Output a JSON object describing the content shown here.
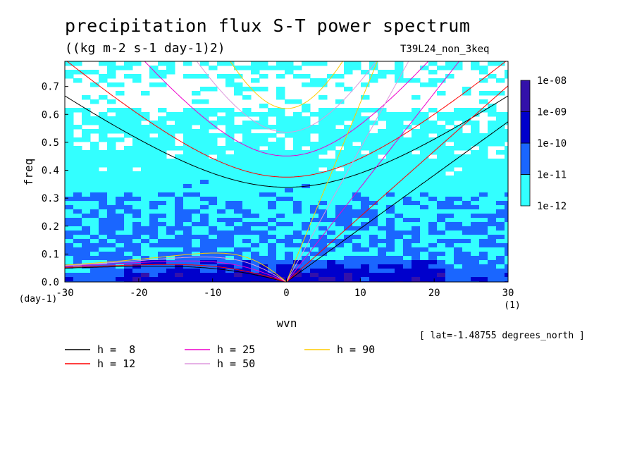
{
  "header": {
    "title": "precipitation flux S-T power spectrum",
    "units": "((kg m-2 s-1 day-1)2)",
    "run": "T39L24_non_3keq",
    "lat_note": "[ lat=-1.48755 degrees_north ]"
  },
  "chart_data": {
    "type": "heatmap",
    "title": "precipitation flux S-T power spectrum",
    "subtitle": "((kg m-2 s-1 day-1)2)",
    "xlabel": "wvn",
    "xunit": "(1)",
    "ylabel": "freq",
    "yunit": "(day-1)",
    "xlim": [
      -30,
      30
    ],
    "ylim": [
      0,
      0.79
    ],
    "xticks": [
      -30,
      -20,
      -10,
      0,
      10,
      20,
      30
    ],
    "xtick_labels": [
      "-30",
      "-20",
      "-10",
      "0",
      "10",
      "20",
      "30"
    ],
    "yticks": [
      0.0,
      0.1,
      0.2,
      0.3,
      0.4,
      0.5,
      0.6,
      0.7
    ],
    "ytick_labels": [
      "0.0",
      "0.1",
      "0.2",
      "0.3",
      "0.4",
      "0.5",
      "0.6",
      "0.7"
    ],
    "colorbar": {
      "levels": [
        "1e-12",
        "1e-11",
        "1e-10",
        "1e-09",
        "1e-08"
      ],
      "colors": [
        "#33ffff",
        "#1a66ff",
        "#0000cc",
        "#3311aa"
      ]
    },
    "power_regions": [
      {
        "level": "1e-12 to 1e-11",
        "approx_freq_range": [
          0.3,
          0.79
        ]
      },
      {
        "level": "1e-11 to 1e-10",
        "approx_freq_range": [
          0.0,
          0.32
        ]
      },
      {
        "level": "1e-10 to 1e-09",
        "approx_freq_range": [
          0.0,
          0.08
        ]
      }
    ],
    "series": [
      {
        "name": "h =  8",
        "equivalent_depth": 8,
        "color": "#000000"
      },
      {
        "name": "h = 12",
        "equivalent_depth": 12,
        "color": "#ff0000"
      },
      {
        "name": "h = 25",
        "equivalent_depth": 25,
        "color": "#ee00cc"
      },
      {
        "name": "h = 50",
        "equivalent_depth": 50,
        "color": "#dd99dd"
      },
      {
        "name": "h = 90",
        "equivalent_depth": 90,
        "color": "#ffcc00"
      }
    ],
    "legend_position": "bottom"
  }
}
